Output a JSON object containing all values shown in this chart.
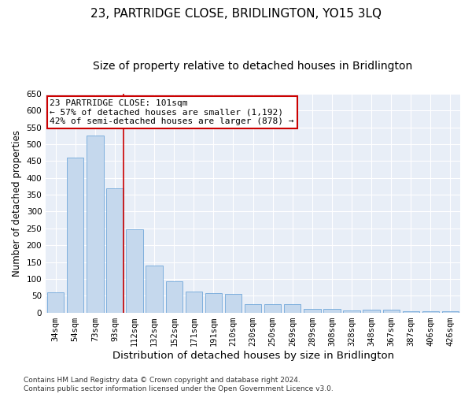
{
  "title": "23, PARTRIDGE CLOSE, BRIDLINGTON, YO15 3LQ",
  "subtitle": "Size of property relative to detached houses in Bridlington",
  "xlabel": "Distribution of detached houses by size in Bridlington",
  "ylabel": "Number of detached properties",
  "categories": [
    "34sqm",
    "54sqm",
    "73sqm",
    "93sqm",
    "112sqm",
    "132sqm",
    "152sqm",
    "171sqm",
    "191sqm",
    "210sqm",
    "230sqm",
    "250sqm",
    "269sqm",
    "289sqm",
    "308sqm",
    "328sqm",
    "348sqm",
    "367sqm",
    "387sqm",
    "406sqm",
    "426sqm"
  ],
  "values": [
    60,
    460,
    525,
    370,
    248,
    140,
    93,
    62,
    58,
    55,
    25,
    25,
    25,
    11,
    11,
    6,
    8,
    8,
    4,
    4,
    3
  ],
  "bar_color": "#c5d8ed",
  "bar_edge_color": "#5b9bd5",
  "background_color": "#e8eef7",
  "grid_color": "#ffffff",
  "ylim": [
    0,
    650
  ],
  "yticks": [
    0,
    50,
    100,
    150,
    200,
    250,
    300,
    350,
    400,
    450,
    500,
    550,
    600,
    650
  ],
  "red_line_after_bar": 3,
  "annotation_line1": "23 PARTRIDGE CLOSE: 101sqm",
  "annotation_line2": "← 57% of detached houses are smaller (1,192)",
  "annotation_line3": "42% of semi-detached houses are larger (878) →",
  "annotation_box_color": "#ffffff",
  "annotation_border_color": "#cc0000",
  "footer": "Contains HM Land Registry data © Crown copyright and database right 2024.\nContains public sector information licensed under the Open Government Licence v3.0.",
  "title_fontsize": 11,
  "subtitle_fontsize": 10,
  "xlabel_fontsize": 9.5,
  "ylabel_fontsize": 8.5,
  "tick_fontsize": 7.5,
  "annotation_fontsize": 8,
  "footer_fontsize": 6.5
}
